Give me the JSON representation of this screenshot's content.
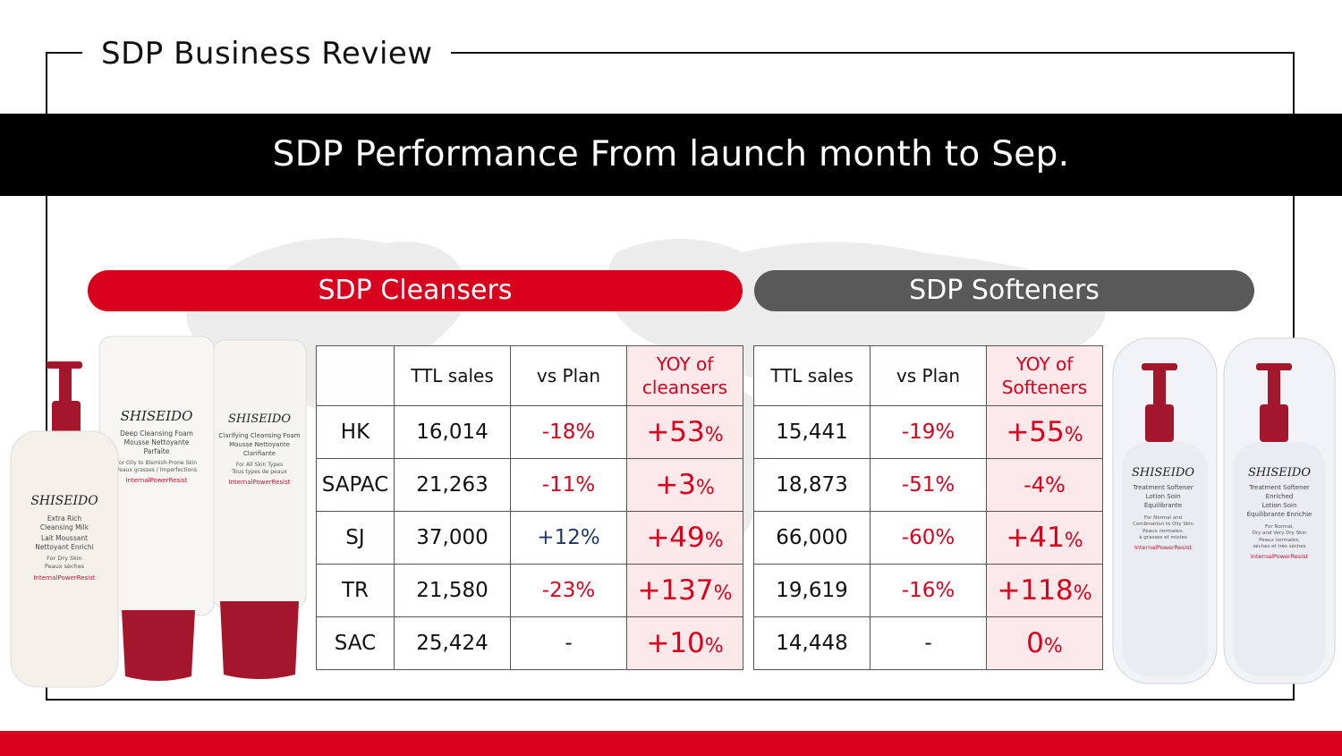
{
  "page": {
    "title": "SDP Business Review"
  },
  "banner": {
    "text": "SDP Performance From launch month to Sep."
  },
  "sections": {
    "cleansers": "SDP Cleansers",
    "softeners": "SDP Softeners"
  },
  "cleansers_table": {
    "headers": [
      "",
      "TTL sales",
      "vs Plan",
      "YOY of cleansers"
    ],
    "rows": [
      {
        "region": "HK",
        "ttl": "16,014",
        "plan": "-18%",
        "yoy": "+53",
        "pct": "%"
      },
      {
        "region": "SAPAC",
        "ttl": "21,263",
        "plan": "-11%",
        "yoy": "+3",
        "pct": "%"
      },
      {
        "region": "SJ",
        "ttl": "37,000",
        "plan": "+12%",
        "yoy": "+49",
        "pct": "%"
      },
      {
        "region": "TR",
        "ttl": "21,580",
        "plan": "-23%",
        "yoy": "+137",
        "pct": "%"
      },
      {
        "region": "SAC",
        "ttl": "25,424",
        "plan": "-",
        "yoy": "+10",
        "pct": "%"
      }
    ]
  },
  "softeners_table": {
    "headers": [
      "TTL sales",
      "vs Plan",
      "YOY of Softeners"
    ],
    "rows": [
      {
        "ttl": "15,441",
        "plan": "-19%",
        "yoy": "+55",
        "pct": "%"
      },
      {
        "ttl": "18,873",
        "plan": "-51%",
        "yoy": "-4%",
        "pct": ""
      },
      {
        "ttl": "66,000",
        "plan": "-60%",
        "yoy": "+41",
        "pct": "%"
      },
      {
        "ttl": "19,619",
        "plan": "-16%",
        "yoy": "+118",
        "pct": "%"
      },
      {
        "ttl": "14,448",
        "plan": "-",
        "yoy": "0",
        "pct": "%"
      }
    ]
  },
  "products": {
    "brand": "SHISEIDO",
    "cleansing_milk": {
      "name1": "Extra Rich",
      "name2": "Cleansing Milk",
      "fr1": "Lait Moussant",
      "fr2": "Nettoyant Enrichi",
      "skin1": "For Dry Skin",
      "skin2": "Peaux sèches",
      "tag": "InternalPowerResist"
    },
    "deep_foam": {
      "name1": "Deep Cleansing Foam",
      "fr1": "Mousse Nettoyante",
      "fr2": "Parfaite",
      "skin1": "For Oily to Blemish-Prone Skin",
      "skin2": "Peaux grasses / Imperfections",
      "tag": "InternalPowerResist"
    },
    "clarifying_foam": {
      "name1": "Clarifying Cleansing Foam",
      "fr1": "Mousse Nettoyante",
      "fr2": "Clarifiante",
      "skin1": "For All Skin Types",
      "skin2": "Tous types de peaux",
      "tag": "InternalPowerResist"
    },
    "softener": {
      "name1": "Treatment Softener",
      "fr1": "Lotion Soin",
      "fr2": "Équilibrante",
      "skin1": "For Normal and",
      "skin2": "Combination to Oily Skin",
      "skin3": "Peaux normales,",
      "skin4": "à grasses et mixtes",
      "tag": "InternalPowerResist"
    },
    "softener_enriched": {
      "name1": "Treatment Softener",
      "name2": "Enriched",
      "fr1": "Lotion Soin",
      "fr2": "Équilibrante Enrichie",
      "skin1": "For Normal,",
      "skin2": "Dry and Very Dry Skin",
      "skin3": "Peaux normales,",
      "skin4": "sèches et très sèches",
      "tag": "InternalPowerResist"
    }
  },
  "colors": {
    "accent_red": "#d8001c",
    "grey_pill": "#595959",
    "yoy_bg": "#fde8ea",
    "positive_blue": "#1f3864"
  }
}
